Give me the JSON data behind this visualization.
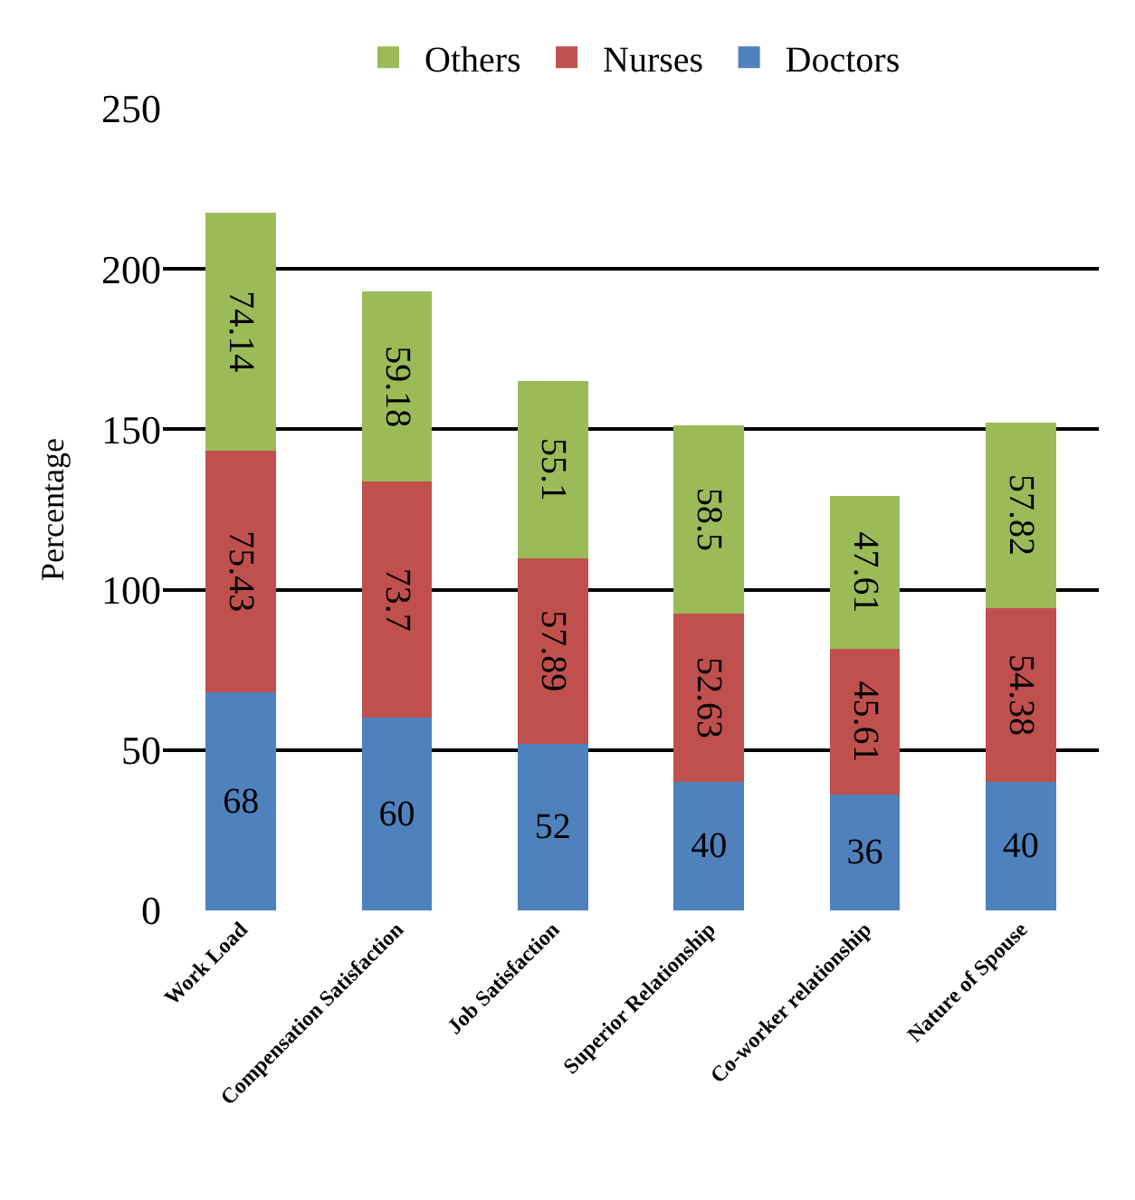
{
  "chart_data": {
    "type": "bar",
    "stacked": true,
    "ylabel": "Percentage",
    "categories": [
      "Work Load",
      "Compensation Satisfaction",
      "Job Satisfaction",
      "Superior Relationship",
      "Co-worker relationship",
      "Nature of Spouse"
    ],
    "series": [
      {
        "name": "Doctors",
        "color": "#4f81bd",
        "values": [
          68,
          60,
          52,
          40,
          36,
          40
        ]
      },
      {
        "name": "Nurses",
        "color": "#c0504d",
        "values": [
          75.43,
          73.7,
          57.89,
          52.63,
          45.61,
          54.38
        ]
      },
      {
        "name": "Others",
        "color": "#9bbb59",
        "values": [
          74.14,
          59.18,
          55.1,
          58.5,
          47.61,
          57.82
        ]
      }
    ],
    "ylim": [
      0,
      250
    ],
    "yticks": [
      0,
      50,
      100,
      150,
      200,
      250
    ],
    "grid": "y",
    "legend": "top",
    "data_labels": true
  }
}
